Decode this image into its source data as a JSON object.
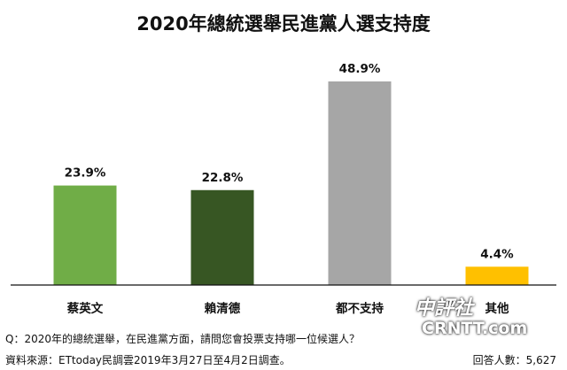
{
  "chart_data": {
    "type": "bar",
    "title": "2020年總統選舉民進黨人選支持度",
    "categories": [
      "蔡英文",
      "賴清德",
      "都不支持",
      "其他"
    ],
    "values": [
      23.9,
      22.8,
      48.9,
      4.4
    ],
    "value_labels": [
      "23.9%",
      "22.8%",
      "48.9%",
      "4.4%"
    ],
    "colors": [
      "#70ad47",
      "#375623",
      "#a6a6a6",
      "#ffc000"
    ],
    "ylim": [
      0,
      55
    ],
    "grid": false,
    "legend": "none"
  },
  "footer": {
    "question": "Q：2020年的總統選舉，在民進黨方面，請問您會投票支持哪一位候選人？",
    "source": "資料來源：ETtoday民調雲2019年3月27日至4月2日調查。",
    "respondents": "回答人數：5,627"
  },
  "watermark": {
    "chinese": "中評社",
    "latin": "CRNTT.com"
  }
}
